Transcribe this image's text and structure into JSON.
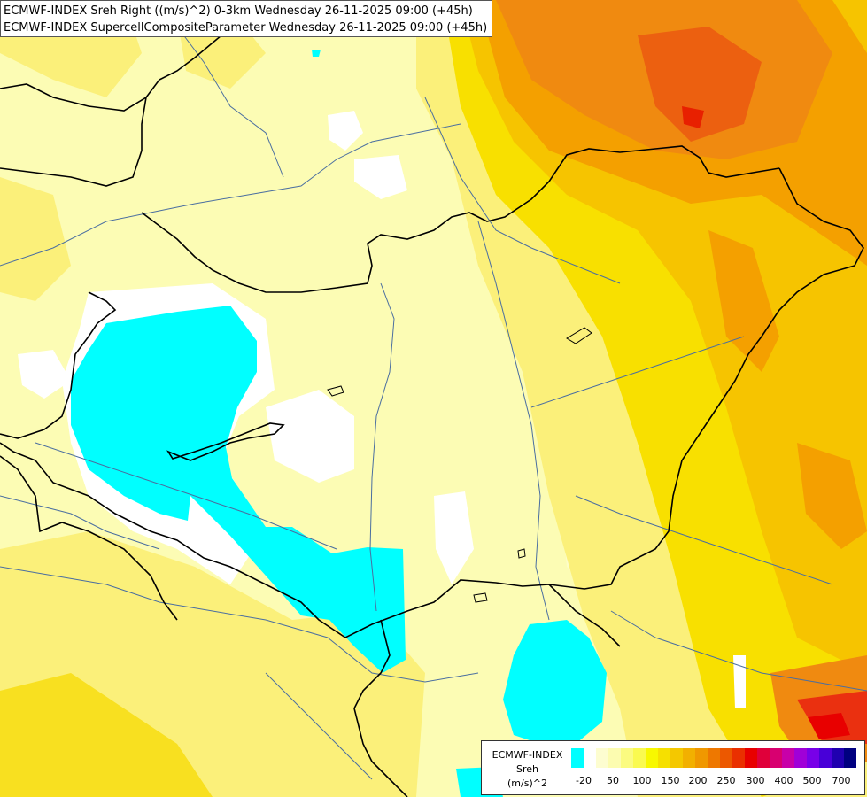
{
  "header": {
    "line1": "ECMWF-INDEX Sreh Right ((m/s)^2) 0-3km Wednesday 26-11-2025 09:00 (+45h)",
    "line2": "ECMWF-INDEX SupercellCompositeParameter Wednesday 26-11-2025 09:00 (+45h)"
  },
  "legend": {
    "title_line1": "ECMWF-INDEX",
    "title_line2": "Sreh",
    "title_line3": "(m/s)^2",
    "colors": [
      "#00ffff",
      "#ffffff",
      "#fdfdd0",
      "#fcfcb0",
      "#fbfb80",
      "#fafa50",
      "#f8f800",
      "#f6e000",
      "#f4c800",
      "#f2b000",
      "#f09800",
      "#ee7800",
      "#ec5800",
      "#ea3000",
      "#e80000",
      "#e0003a",
      "#d80070",
      "#c800a8",
      "#a000d8",
      "#7800e8",
      "#4800d8",
      "#2000b0",
      "#000080"
    ],
    "ticks": [
      "-20",
      "50",
      "100",
      "150",
      "200",
      "250",
      "300",
      "400",
      "500",
      "700"
    ]
  },
  "colors": {
    "background": "#fdfdc8",
    "pale": "#fcfcd8",
    "yellow": "#fbf480",
    "gold": "#f8e000",
    "orange": "#f4a000",
    "dark_orange": "#f08020",
    "red": "#ea3010",
    "cyan": "#00ffff",
    "white": "#ffffff",
    "border": "#000000",
    "river": "#4a6ea0"
  }
}
